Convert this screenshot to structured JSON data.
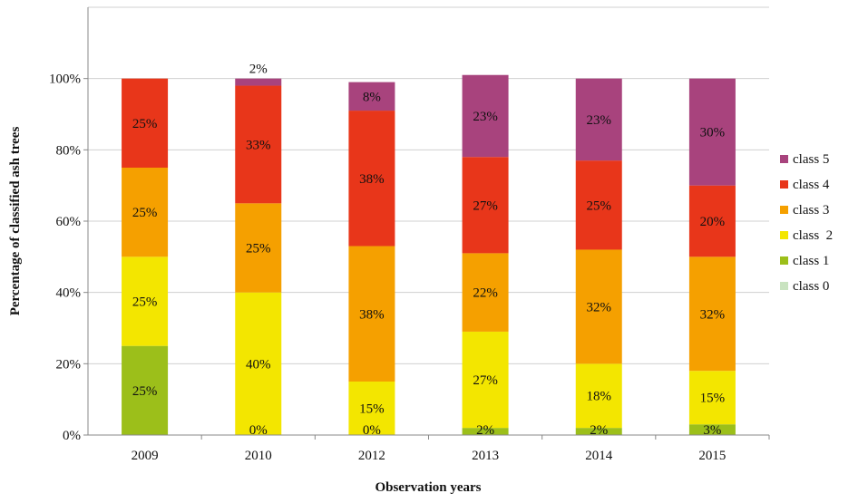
{
  "chart_data": {
    "type": "bar",
    "stacked": true,
    "title": "",
    "xlabel": "Observation years",
    "ylabel": "Percentage of classified ash trees",
    "ylim": [
      0,
      120
    ],
    "yticks": [
      0,
      20,
      40,
      60,
      80,
      100
    ],
    "ytick_labels": [
      "0%",
      "20%",
      "40%",
      "60%",
      "80%",
      "100%"
    ],
    "grid": true,
    "legend_position": "right",
    "categories": [
      "2009",
      "2010",
      "2012",
      "2013",
      "2014",
      "2015"
    ],
    "series": [
      {
        "name": "class 0",
        "color": "#c9e3c0",
        "values": [
          0,
          0,
          0,
          0,
          0,
          0
        ],
        "labels": [
          "",
          "",
          "",
          "",
          "",
          ""
        ]
      },
      {
        "name": "class 1",
        "color": "#9cbf1a",
        "values": [
          25,
          0,
          0,
          2,
          2,
          3
        ],
        "labels": [
          "25%",
          "0%",
          "0%",
          "2%",
          "2%",
          "3%"
        ]
      },
      {
        "name": "class  2",
        "color": "#f3e600",
        "values": [
          25,
          40,
          15,
          27,
          18,
          15
        ],
        "labels": [
          "25%",
          "40%",
          "15%",
          "27%",
          "18%",
          "15%"
        ]
      },
      {
        "name": "class 3",
        "color": "#f5a000",
        "values": [
          25,
          25,
          38,
          22,
          32,
          32
        ],
        "labels": [
          "25%",
          "25%",
          "38%",
          "22%",
          "32%",
          "32%"
        ]
      },
      {
        "name": "class 4",
        "color": "#e8361a",
        "values": [
          25,
          33,
          38,
          27,
          25,
          20
        ],
        "labels": [
          "25%",
          "33%",
          "38%",
          "27%",
          "25%",
          "20%"
        ]
      },
      {
        "name": "class 5",
        "color": "#a8437d",
        "values": [
          0,
          2,
          8,
          23,
          23,
          30
        ],
        "labels": [
          "",
          "2%",
          "8%",
          "23%",
          "23%",
          "30%"
        ]
      }
    ],
    "legend_order": [
      "class 5",
      "class 4",
      "class 3",
      "class  2",
      "class 1",
      "class 0"
    ]
  }
}
